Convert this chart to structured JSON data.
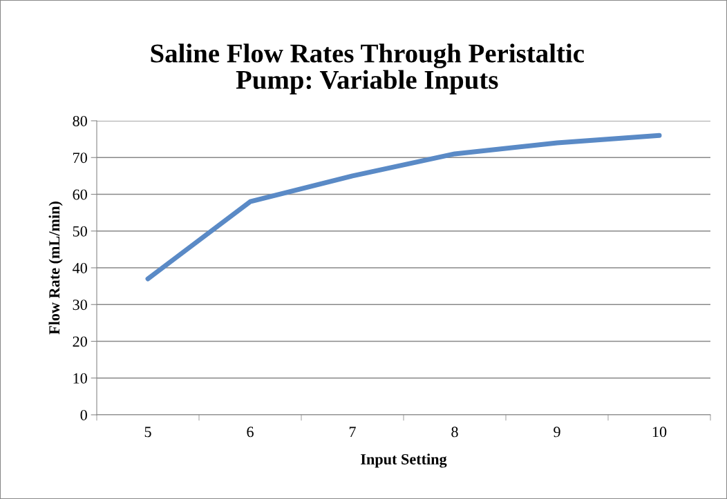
{
  "chart_data": {
    "type": "line",
    "title": "Saline Flow Rates Through Peristaltic\nPump: Variable Inputs",
    "xlabel": "Input Setting",
    "ylabel": "Flow Rate (mL/min)",
    "categories": [
      "5",
      "6",
      "7",
      "8",
      "9",
      "10"
    ],
    "series": [
      {
        "color": "#5a8ac6",
        "values": [
          37,
          58,
          65,
          71,
          74,
          76
        ]
      }
    ],
    "ylim": [
      0,
      80
    ],
    "yticks": [
      0,
      10,
      20,
      30,
      40,
      50,
      60,
      70,
      80
    ],
    "grid": "y",
    "marker": "none",
    "line_style": "solid"
  }
}
